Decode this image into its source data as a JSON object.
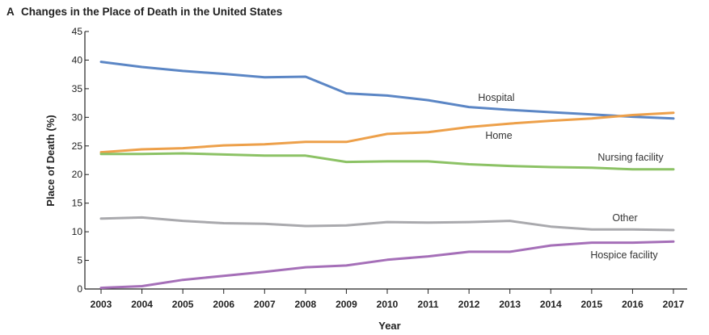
{
  "chart_data": {
    "type": "line",
    "panel_label": "A",
    "title": "Changes in the Place of Death in the United States",
    "xlabel": "Year",
    "ylabel": "Place of Death (%)",
    "x": [
      2003,
      2004,
      2005,
      2006,
      2007,
      2008,
      2009,
      2010,
      2011,
      2012,
      2013,
      2014,
      2015,
      2016,
      2017
    ],
    "ylim": [
      0,
      45
    ],
    "yticks": [
      0,
      5,
      10,
      15,
      20,
      25,
      30,
      35,
      40,
      45
    ],
    "grid": false,
    "legend": "inline labels at line ends",
    "series": [
      {
        "name": "Hospital",
        "color": "#5b86c5",
        "values": [
          39.7,
          38.8,
          38.1,
          37.6,
          37.0,
          37.1,
          34.2,
          33.8,
          33.0,
          31.8,
          31.3,
          30.9,
          30.5,
          30.1,
          29.8
        ]
      },
      {
        "name": "Home",
        "color": "#eda04a",
        "values": [
          23.9,
          24.4,
          24.6,
          25.1,
          25.3,
          25.7,
          25.7,
          27.1,
          27.4,
          28.3,
          28.9,
          29.4,
          29.8,
          30.4,
          30.8
        ]
      },
      {
        "name": "Nursing facility",
        "color": "#8cc265",
        "values": [
          23.6,
          23.6,
          23.7,
          23.5,
          23.3,
          23.3,
          22.2,
          22.3,
          22.3,
          21.8,
          21.5,
          21.3,
          21.2,
          20.9,
          20.9
        ]
      },
      {
        "name": "Other",
        "color": "#a9a9ad",
        "values": [
          12.3,
          12.5,
          11.9,
          11.5,
          11.4,
          11.0,
          11.1,
          11.7,
          11.6,
          11.7,
          11.9,
          10.9,
          10.4,
          10.4,
          10.3
        ]
      },
      {
        "name": "Hospice facility",
        "color": "#a56fb8",
        "values": [
          0.2,
          0.5,
          1.6,
          2.3,
          3.0,
          3.8,
          4.1,
          5.1,
          5.7,
          6.5,
          6.5,
          7.6,
          8.1,
          8.1,
          8.3
        ]
      }
    ]
  }
}
